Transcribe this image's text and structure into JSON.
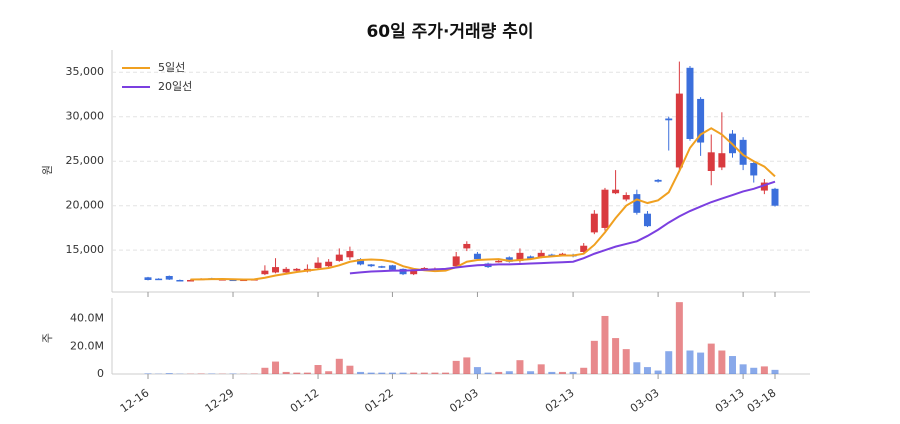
{
  "chart_data": [
    {
      "type": "candlestick",
      "title": "60일 주가·거래량 추이",
      "y_label": "원",
      "up_color": "#d93a3f",
      "down_color": "#3b6fdc",
      "open": [
        11950,
        11800,
        12100,
        11650,
        11600,
        11700,
        11850,
        11700,
        11700,
        11650,
        11700,
        12300,
        12500,
        12500,
        12700,
        12600,
        13000,
        13200,
        13800,
        14200,
        14000,
        13400,
        13200,
        13300,
        12900,
        12300,
        12900,
        12850,
        12800,
        13200,
        15200,
        14600,
        13500,
        13700,
        14200,
        13800,
        14300,
        14200,
        14500,
        14500,
        14500,
        14800,
        17000,
        17500,
        21400,
        20700,
        21300,
        19100,
        22900,
        29800,
        24300,
        35500,
        32000,
        23900,
        24300,
        28100,
        27400,
        24800,
        21700,
        21900
      ],
      "high": [
        12000,
        11850,
        12150,
        11700,
        11700,
        11850,
        11900,
        11800,
        11750,
        11750,
        11800,
        13300,
        14100,
        13100,
        13000,
        13400,
        14200,
        14000,
        15200,
        15400,
        14100,
        13450,
        13250,
        13350,
        12950,
        12750,
        13100,
        13050,
        13000,
        14800,
        16000,
        14800,
        13600,
        13900,
        14300,
        15200,
        14400,
        15000,
        14600,
        14700,
        14600,
        15800,
        19500,
        22000,
        24000,
        21500,
        21800,
        19400,
        23000,
        30000,
        36200,
        35700,
        32200,
        28000,
        30500,
        28500,
        27700,
        25000,
        23000,
        22000
      ],
      "low": [
        11600,
        11650,
        11650,
        11550,
        11550,
        11650,
        11750,
        11650,
        11550,
        11600,
        11650,
        12200,
        12400,
        12300,
        12600,
        12500,
        12800,
        13100,
        13700,
        13900,
        13300,
        13100,
        13000,
        12700,
        12200,
        12200,
        12800,
        12800,
        12750,
        13100,
        14900,
        13900,
        13000,
        13600,
        13600,
        13600,
        13900,
        14100,
        14300,
        14400,
        14200,
        14700,
        16800,
        17200,
        21300,
        20500,
        19000,
        17600,
        22600,
        26200,
        23900,
        27300,
        25600,
        22300,
        24000,
        25400,
        24000,
        22600,
        21300,
        19900
      ],
      "close": [
        11650,
        11700,
        11700,
        11600,
        11650,
        11800,
        11800,
        11750,
        11600,
        11700,
        11750,
        12700,
        13100,
        12900,
        12900,
        12900,
        13600,
        13700,
        14500,
        14900,
        13400,
        13200,
        13100,
        12800,
        12300,
        12700,
        13000,
        12950,
        12900,
        14300,
        15700,
        14000,
        13100,
        13800,
        13700,
        14700,
        14000,
        14700,
        14400,
        14600,
        14300,
        15500,
        19100,
        21800,
        21800,
        21200,
        19200,
        17700,
        22700,
        29600,
        32600,
        27500,
        27100,
        26000,
        25900,
        25900,
        24600,
        23400,
        22600,
        20000
      ],
      "series": [
        {
          "name": "5일선",
          "color": "#f0a020",
          "values": [
            null,
            null,
            null,
            null,
            11700,
            11720,
            11750,
            11760,
            11730,
            11700,
            11720,
            11900,
            12150,
            12350,
            12550,
            12700,
            12850,
            13000,
            13300,
            13700,
            13900,
            13950,
            13900,
            13700,
            13200,
            12900,
            12750,
            12650,
            12700,
            13100,
            13700,
            13900,
            13950,
            14000,
            13800,
            13900,
            14000,
            14200,
            14300,
            14400,
            14400,
            14600,
            15600,
            17000,
            18600,
            20000,
            20700,
            20300,
            20600,
            21500,
            23900,
            26500,
            28000,
            28700,
            28000,
            26900,
            25700,
            25000,
            24400,
            23300
          ]
        },
        {
          "name": "20일선",
          "color": "#7b3fe0",
          "values": [
            null,
            null,
            null,
            null,
            null,
            null,
            null,
            null,
            null,
            null,
            null,
            null,
            null,
            null,
            null,
            null,
            null,
            null,
            null,
            12400,
            12500,
            12600,
            12650,
            12700,
            12700,
            12750,
            12800,
            12850,
            12900,
            13050,
            13200,
            13300,
            13350,
            13400,
            13400,
            13450,
            13500,
            13550,
            13600,
            13650,
            13700,
            14100,
            14600,
            15000,
            15400,
            15700,
            16000,
            16600,
            17300,
            18100,
            18800,
            19400,
            19900,
            20400,
            20800,
            21200,
            21600,
            21900,
            22300,
            22700
          ]
        }
      ],
      "ylim": [
        10300,
        37500
      ],
      "yticks": [
        {
          "value": 15000,
          "label": "15,000"
        },
        {
          "value": 20000,
          "label": "20,000"
        },
        {
          "value": 25000,
          "label": "25,000"
        },
        {
          "value": 30000,
          "label": "30,000"
        },
        {
          "value": 35000,
          "label": "35,000"
        }
      ],
      "grid": true,
      "legend": "upper-left"
    },
    {
      "type": "bar",
      "y_label": "주",
      "categories": [
        "12-16",
        null,
        null,
        null,
        null,
        null,
        null,
        null,
        "12-29",
        null,
        null,
        null,
        null,
        null,
        null,
        null,
        "01-12",
        null,
        null,
        null,
        null,
        null,
        null,
        "01-22",
        null,
        null,
        null,
        null,
        null,
        null,
        null,
        "02-03",
        null,
        null,
        null,
        null,
        null,
        null,
        null,
        null,
        "02-13",
        null,
        null,
        null,
        null,
        null,
        null,
        null,
        "03-03",
        null,
        null,
        null,
        null,
        null,
        null,
        null,
        "03-13",
        null,
        null,
        "03-18"
      ],
      "values": [
        400000,
        200000,
        600000,
        200000,
        200000,
        300000,
        300000,
        200000,
        300000,
        200000,
        300000,
        4500000,
        9000000,
        1500000,
        1000000,
        1000000,
        6500000,
        2000000,
        11000000,
        6000000,
        1500000,
        1000000,
        1000000,
        1000000,
        1000000,
        1000000,
        1000000,
        1000000,
        1000000,
        9500000,
        12000000,
        5000000,
        1000000,
        1500000,
        2000000,
        10000000,
        2000000,
        7000000,
        1500000,
        1500000,
        1500000,
        4500000,
        24000000,
        42000000,
        26000000,
        18000000,
        8500000,
        5000000,
        2500000,
        16500000,
        52000000,
        17000000,
        15500000,
        22000000,
        17000000,
        13000000,
        7000000,
        4500000,
        5500000,
        3000000
      ],
      "ylim": [
        0,
        55000000
      ],
      "yticks": [
        0,
        {
          "value": 20000000,
          "label": "20.0M"
        },
        {
          "value": 40000000,
          "label": "40.0M"
        }
      ]
    }
  ]
}
